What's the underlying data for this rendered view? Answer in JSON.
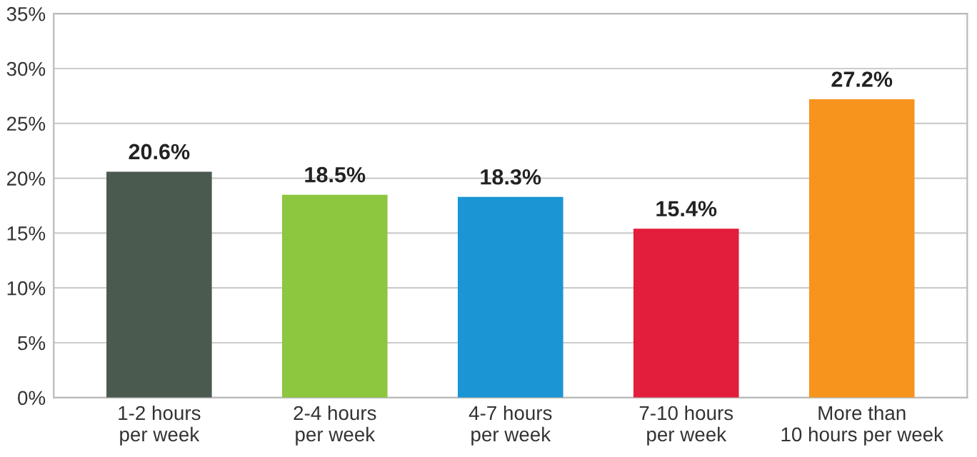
{
  "chart_data": {
    "type": "bar",
    "categories": [
      "1-2 hours\nper week",
      "2-4 hours\nper week",
      "4-7 hours\nper week",
      "7-10 hours\nper week",
      "More than\n10 hours per week"
    ],
    "values": [
      20.6,
      18.5,
      18.3,
      15.4,
      27.2
    ],
    "colors": [
      "#4b5a4f",
      "#8dc63f",
      "#1b95d3",
      "#e31d3c",
      "#f7941d"
    ],
    "value_labels": [
      "20.6%",
      "18.5%",
      "18.3%",
      "15.4%",
      "27.2%"
    ],
    "ylim": [
      0,
      35
    ],
    "yticks": [
      {
        "value": 0,
        "label": "0%"
      },
      {
        "value": 5,
        "label": "5%"
      },
      {
        "value": 10,
        "label": "10%"
      },
      {
        "value": 15,
        "label": "15%"
      },
      {
        "value": 20,
        "label": "20%"
      },
      {
        "value": 25,
        "label": "25%"
      },
      {
        "value": 30,
        "label": "30%"
      },
      {
        "value": 35,
        "label": "35%"
      }
    ],
    "grid": "y"
  }
}
